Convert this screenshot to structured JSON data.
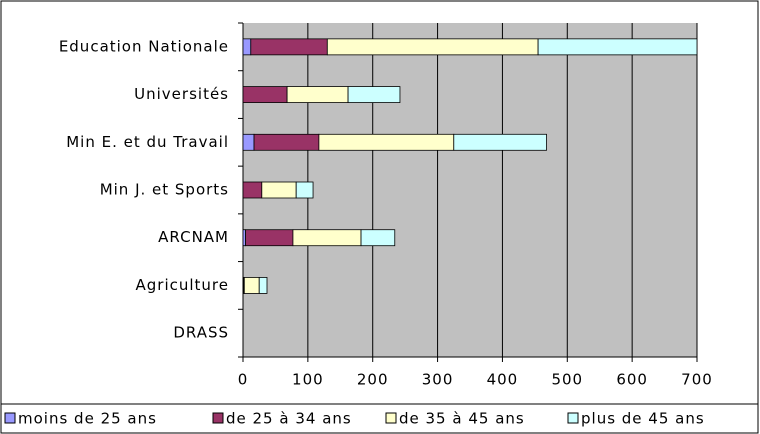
{
  "chart_data": {
    "type": "bar",
    "orientation": "horizontal",
    "stacked": true,
    "categories": [
      "Education Nationale",
      "Universités",
      "Min E. et du Travail",
      "Min J. et Sports",
      "ARCNAM",
      "Agriculture",
      "DRASS"
    ],
    "series": [
      {
        "name": "moins de 25 ans",
        "color": "#9999ff",
        "values": [
          12,
          0,
          17,
          0,
          4,
          1,
          0
        ]
      },
      {
        "name": "de 25 à 34 ans",
        "color": "#993366",
        "values": [
          118,
          68,
          100,
          29,
          73,
          1,
          0
        ]
      },
      {
        "name": "de 35 à 45 ans",
        "color": "#ffffcc",
        "values": [
          325,
          94,
          208,
          53,
          105,
          23,
          0
        ]
      },
      {
        "name": "plus de 45 ans",
        "color": "#ccffff",
        "values": [
          245,
          80,
          143,
          26,
          52,
          12,
          0
        ]
      }
    ],
    "xlim": [
      0,
      700
    ],
    "xticks": [
      0,
      100,
      200,
      300,
      400,
      500,
      600,
      700
    ],
    "grid": true
  }
}
